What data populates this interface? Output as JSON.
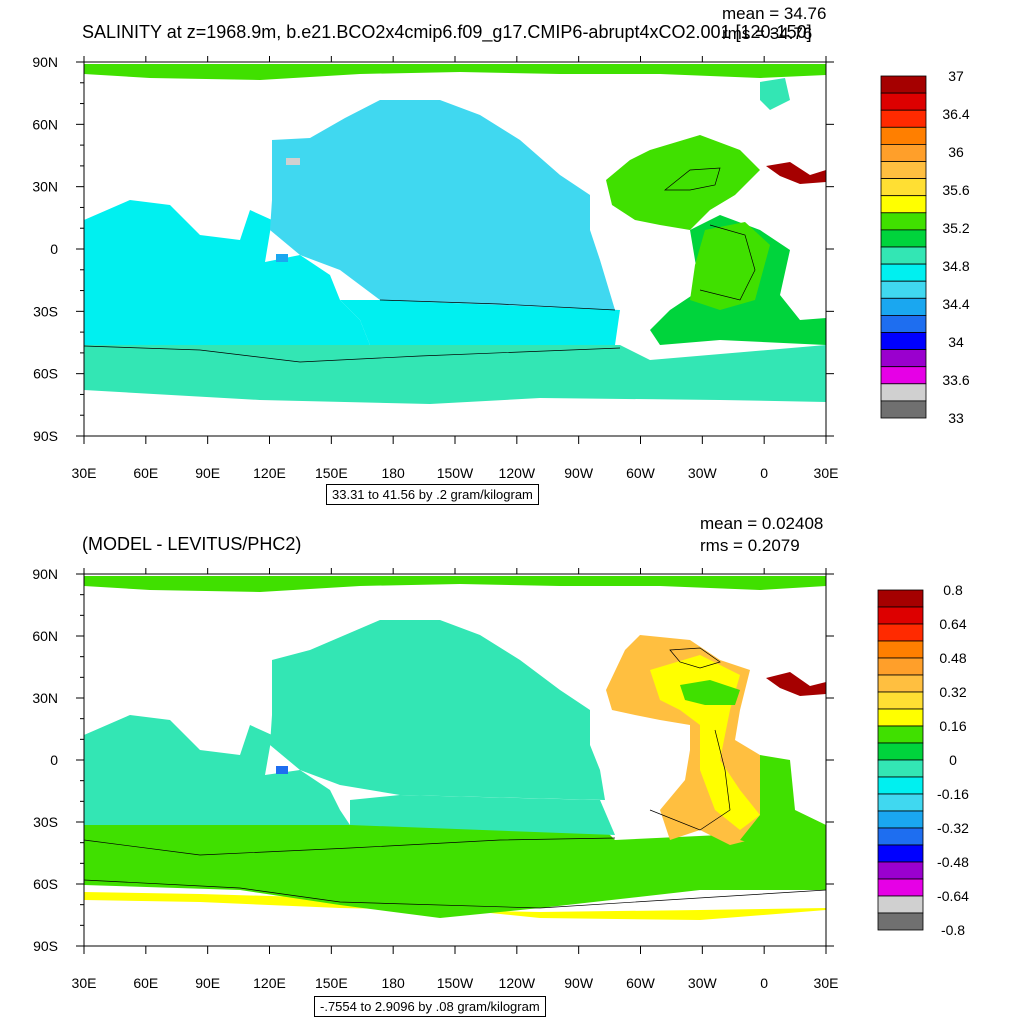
{
  "top_panel": {
    "title": "SALINITY at z=1968.9m, b.e21.BCO2x4cmip6.f09_g17.CMIP6-abrupt4xCO2.001 [120-150]",
    "mean": "mean = 34.76",
    "rms": "rms = 34.76",
    "info": "33.31 to 41.56 by .2 gram/kilogram"
  },
  "bottom_panel": {
    "title": "(MODEL - LEVITUS/PHC2)",
    "mean": "mean = 0.02408",
    "rms": "rms = 0.2079",
    "info": "-.7554 to 2.9096 by .08 gram/kilogram"
  },
  "chart_data": [
    {
      "type": "heatmap",
      "title": "SALINITY at z=1968.9m, b.e21.BCO2x4cmip6.f09_g17.CMIP6-abrupt4xCO2.001 [120-150]",
      "x_ticks": [
        "30E",
        "60E",
        "90E",
        "120E",
        "150E",
        "180",
        "150W",
        "120W",
        "90W",
        "60W",
        "30W",
        "0",
        "30E"
      ],
      "y_ticks": [
        "90N",
        "60N",
        "30N",
        "0",
        "30S",
        "60S",
        "90S"
      ],
      "colorbar_labels": [
        "37",
        "36.4",
        "36",
        "35.6",
        "35.2",
        "34.8",
        "34.4",
        "34",
        "33.6",
        "33"
      ],
      "colorbar_colors": [
        "#a50000",
        "#dd0000",
        "#ff2a00",
        "#ff7f00",
        "#ff9f2a",
        "#ffbf40",
        "#ffdf33",
        "#ffff00",
        "#40e000",
        "#00d43c",
        "#33e6b4",
        "#00f0f0",
        "#40d8f0",
        "#1aa7f0",
        "#1e6ef0",
        "#0000ff",
        "#9a00ce",
        "#e600e6",
        "#d0d0d0",
        "#707070"
      ],
      "regions": {
        "pacific": 34.6,
        "indian_southern": 34.7,
        "south_atlantic": 34.9,
        "north_atlantic": 35.0,
        "arctic": 35.0,
        "mediterranean": 37.0
      }
    },
    {
      "type": "heatmap",
      "title": "(MODEL - LEVITUS/PHC2)",
      "x_ticks": [
        "30E",
        "60E",
        "90E",
        "120E",
        "150E",
        "180",
        "150W",
        "120W",
        "90W",
        "60W",
        "30W",
        "0",
        "30E"
      ],
      "y_ticks": [
        "90N",
        "60N",
        "30N",
        "0",
        "30S",
        "60S",
        "90S"
      ],
      "colorbar_labels": [
        "0.8",
        "0.64",
        "0.48",
        "0.32",
        "0.16",
        "0",
        "-0.16",
        "-0.32",
        "-0.48",
        "-0.64",
        "-0.8"
      ],
      "colorbar_colors": [
        "#a50000",
        "#dd0000",
        "#ff2a00",
        "#ff7f00",
        "#ff9f2a",
        "#ffbf40",
        "#ffdf33",
        "#ffff00",
        "#40e000",
        "#00d43c",
        "#33e6b4",
        "#00f0f0",
        "#40d8f0",
        "#1aa7f0",
        "#1e6ef0",
        "#0000ff",
        "#9a00ce",
        "#e600e6",
        "#d0d0d0",
        "#707070"
      ],
      "regions": {
        "north_pacific": -0.1,
        "southern_ocean": 0.2,
        "north_atlantic": 0.3,
        "south_atlantic": 0.0,
        "mediterranean": 0.8
      }
    }
  ]
}
